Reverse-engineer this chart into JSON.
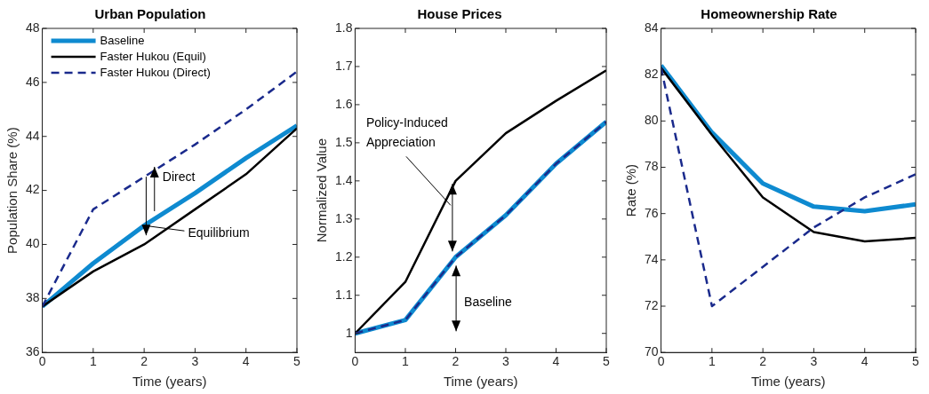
{
  "chart_data": [
    {
      "type": "line",
      "title": "Urban Population",
      "xlabel": "Time (years)",
      "ylabel": "Population Share (%)",
      "x": [
        0,
        1,
        2,
        3,
        4,
        5
      ],
      "xlim": [
        0,
        5
      ],
      "xticks": [
        0,
        1,
        2,
        3,
        4,
        5
      ],
      "ylim": [
        36,
        48
      ],
      "yticks": [
        36,
        38,
        40,
        42,
        44,
        46,
        48
      ],
      "grid": false,
      "legend": "top left",
      "marker": "none",
      "series": [
        {
          "name": "Baseline",
          "color": "#0e8ad0",
          "line_style": "solid",
          "values": [
            37.7,
            39.3,
            40.7,
            41.9,
            43.2,
            44.4
          ]
        },
        {
          "name": "Faster Hukou (Equil)",
          "color": "#000000",
          "line_style": "solid",
          "values": [
            37.7,
            39.0,
            40.0,
            41.3,
            42.6,
            44.3
          ]
        },
        {
          "name": "Faster Hukou (Direct)",
          "color": "#1a2a8c",
          "line_style": "dashed",
          "values": [
            37.7,
            41.3,
            42.5,
            43.7,
            45.0,
            46.4
          ]
        }
      ],
      "annotations": [
        "Direct",
        {
          "text": "Equilibrium",
          "x": 2,
          "y": 40.7
        }
      ]
    },
    {
      "type": "line",
      "title": "House Prices",
      "xlabel": "Time (years)",
      "ylabel": "Normalized Value",
      "x": [
        0,
        1,
        2,
        3,
        4,
        5
      ],
      "xlim": [
        0,
        5
      ],
      "xticks": [
        0,
        1,
        2,
        3,
        4,
        5
      ],
      "ylim": [
        0.95,
        1.8
      ],
      "yticks": [
        1,
        1.1,
        1.2,
        1.3,
        1.4,
        1.5,
        1.6,
        1.7,
        1.8
      ],
      "grid": false,
      "marker": "none",
      "series": [
        {
          "color": "#0e8ad0",
          "line_style": "solid",
          "values": [
            1.0,
            1.035,
            1.2,
            1.31,
            1.445,
            1.555
          ]
        },
        {
          "color": "#000000",
          "line_style": "solid",
          "values": [
            1.0,
            1.135,
            1.4,
            1.525,
            1.61,
            1.69
          ]
        },
        {
          "color": "#1a2a8c",
          "line_style": "dashed",
          "values": [
            1.0,
            1.035,
            1.2,
            1.31,
            1.445,
            1.555
          ]
        }
      ],
      "annotations": [
        "Policy-Induced\nAppreciation",
        "Baseline"
      ]
    },
    {
      "type": "line",
      "title": "Homeownership Rate",
      "xlabel": "Time (years)",
      "ylabel": "Rate (%)",
      "x": [
        0,
        1,
        2,
        3,
        4,
        5
      ],
      "xlim": [
        0,
        5
      ],
      "xticks": [
        0,
        1,
        2,
        3,
        4,
        5
      ],
      "ylim": [
        70,
        84
      ],
      "yticks": [
        70,
        72,
        74,
        76,
        78,
        80,
        82,
        84
      ],
      "grid": false,
      "marker": "none",
      "series": [
        {
          "color": "#0e8ad0",
          "line_style": "solid",
          "values": [
            82.4,
            79.5,
            77.3,
            76.3,
            76.1,
            76.4
          ]
        },
        {
          "color": "#000000",
          "line_style": "solid",
          "values": [
            82.3,
            79.4,
            76.7,
            75.2,
            74.8,
            74.95
          ]
        },
        {
          "color": "#1a2a8c",
          "line_style": "dashed",
          "values": [
            82.3,
            72.0,
            73.7,
            75.4,
            76.7,
            77.7
          ]
        }
      ]
    }
  ]
}
